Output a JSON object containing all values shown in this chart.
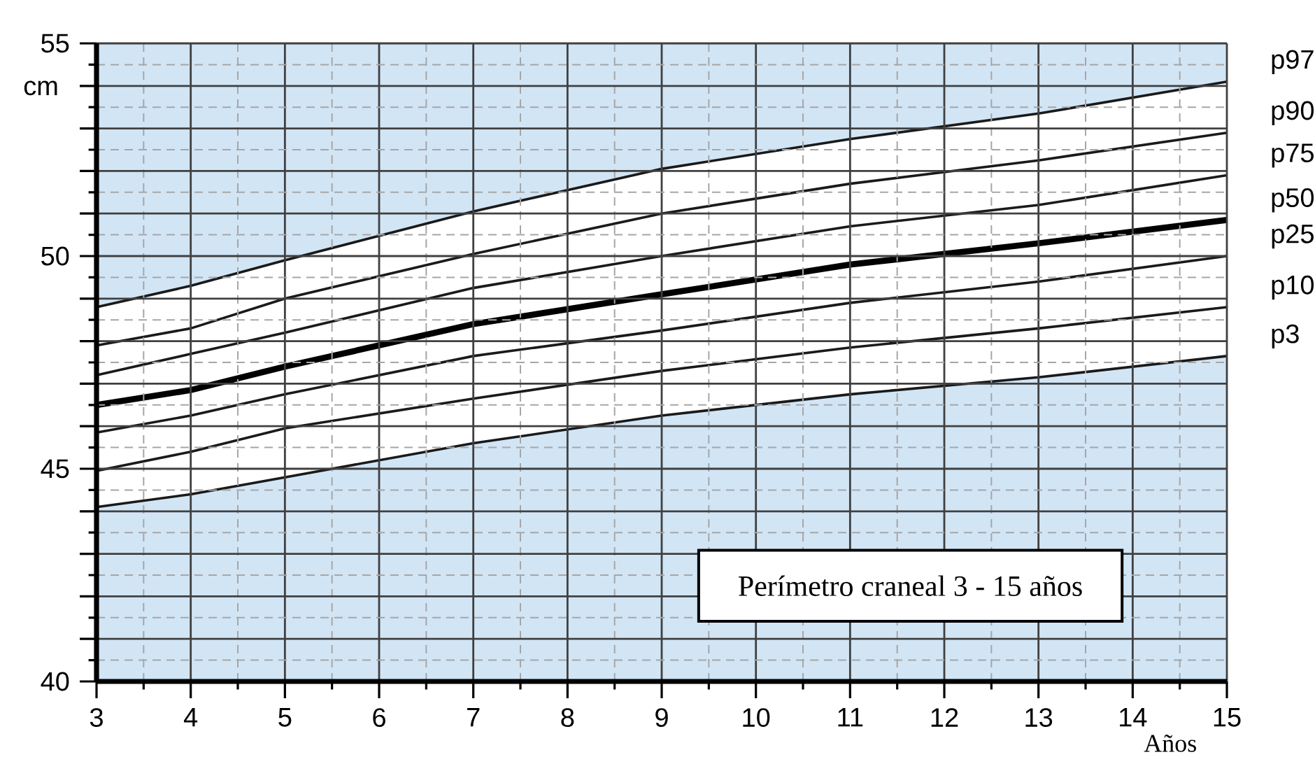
{
  "chart_data": {
    "type": "line",
    "title": "Perímetro craneal 3 - 15 años",
    "xlabel": "Años",
    "ylabel": "cm",
    "x": [
      3,
      4,
      5,
      7,
      9,
      11,
      13,
      15
    ],
    "series": [
      {
        "name": "p97",
        "color": "#1a1a1a",
        "values": [
          48.8,
          49.3,
          49.9,
          51.05,
          52.05,
          52.75,
          53.35,
          54.1
        ]
      },
      {
        "name": "p90",
        "color": "#1a1a1a",
        "values": [
          47.9,
          48.3,
          49.0,
          50.05,
          51.0,
          51.7,
          52.25,
          52.9
        ]
      },
      {
        "name": "p75",
        "color": "#1a1a1a",
        "values": [
          47.2,
          47.7,
          48.2,
          49.25,
          50.0,
          50.7,
          51.2,
          51.9
        ]
      },
      {
        "name": "p50",
        "color": "#000000",
        "values": [
          46.5,
          46.85,
          47.4,
          48.4,
          49.1,
          49.8,
          50.3,
          50.85
        ],
        "lower": [
          44.1,
          44.4,
          44.8,
          45.6,
          46.25,
          46.75,
          47.15,
          47.65
        ],
        "upper": [
          48.8,
          49.3,
          49.9,
          51.05,
          52.05,
          52.75,
          53.35,
          54.1
        ]
      },
      {
        "name": "p25",
        "color": "#1a1a1a",
        "values": [
          45.85,
          46.25,
          46.75,
          47.65,
          48.25,
          48.9,
          49.4,
          50.0
        ]
      },
      {
        "name": "p10",
        "color": "#1a1a1a",
        "values": [
          44.95,
          45.4,
          45.95,
          46.65,
          47.3,
          47.85,
          48.3,
          48.8
        ]
      },
      {
        "name": "p3",
        "color": "#1a1a1a",
        "values": [
          44.1,
          44.4,
          44.8,
          45.6,
          46.25,
          46.75,
          47.15,
          47.65
        ]
      }
    ],
    "xlim": [
      3,
      15
    ],
    "ylim": [
      40,
      55
    ],
    "xticks": [
      3,
      4,
      5,
      6,
      7,
      8,
      9,
      10,
      11,
      12,
      13,
      14,
      15
    ],
    "yticks": [
      40,
      {
        "value": 41,
        "label": null
      },
      {
        "value": 42,
        "label": null
      },
      {
        "value": 43,
        "label": null
      },
      {
        "value": 44,
        "label": null
      },
      45,
      {
        "value": 46,
        "label": null
      },
      {
        "value": 47,
        "label": null
      },
      {
        "value": 48,
        "label": null
      },
      {
        "value": 49,
        "label": null
      },
      50,
      {
        "value": 51,
        "label": null
      },
      {
        "value": 52,
        "label": null
      },
      {
        "value": 53,
        "label": null
      },
      {
        "value": 54,
        "label": null
      },
      55
    ],
    "grid": true,
    "legend": false,
    "marker": "none",
    "line_style": "solid"
  }
}
